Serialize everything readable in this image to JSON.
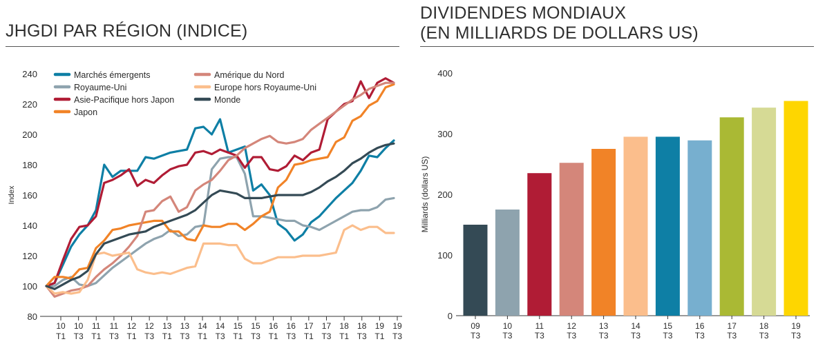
{
  "colors": {
    "marches_emergents": "#0e7fa5",
    "royaume_uni": "#8ea3ae",
    "asie_pacifique": "#b01c35",
    "japon": "#f18327",
    "amerique_du_nord": "#d4867a",
    "europe": "#fbbe8c",
    "monde": "#344a55"
  },
  "charts": {
    "left_title": "JHGDI PAR RÉGION (INDICE)",
    "right_title_line1": "DIVIDENDES MONDIAUX",
    "right_title_line2": "(EN MILLIARDS DE DOLLARS US)"
  },
  "chart_data": [
    {
      "type": "line",
      "title": "JHGDI PAR RÉGION (INDICE)",
      "ylabel": "Index",
      "ylim": [
        80,
        240
      ],
      "yticks": [
        80,
        100,
        120,
        140,
        160,
        180,
        200,
        220,
        240
      ],
      "x_tick_labels": [
        [
          "10",
          "T1"
        ],
        [
          "10",
          "T3"
        ],
        [
          "11",
          "T1"
        ],
        [
          "11",
          "T3"
        ],
        [
          "12",
          "T1"
        ],
        [
          "12",
          "T3"
        ],
        [
          "13",
          "T1"
        ],
        [
          "13",
          "T3"
        ],
        [
          "14",
          "T1"
        ],
        [
          "14",
          "T3"
        ],
        [
          "15",
          "T1"
        ],
        [
          "15",
          "T3"
        ],
        [
          "16",
          "T1"
        ],
        [
          "16",
          "T3"
        ],
        [
          "17",
          "T1"
        ],
        [
          "17",
          "T3"
        ],
        [
          "18",
          "T1"
        ],
        [
          "18",
          "T3"
        ],
        [
          "19",
          "T1"
        ],
        [
          "19",
          "T3"
        ]
      ],
      "legend_position": "top",
      "series": [
        {
          "name": "Marchés émergents",
          "color_key": "marches_emergents",
          "values": [
            100,
            102,
            114,
            126,
            134,
            140,
            150,
            180,
            172,
            176,
            176,
            176,
            185,
            184,
            186,
            188,
            189,
            190,
            204,
            205,
            200,
            210,
            188,
            190,
            192,
            163,
            167,
            160,
            141,
            137,
            130,
            134,
            142,
            146,
            152,
            158,
            163,
            168,
            176,
            186,
            185,
            191,
            196
          ]
        },
        {
          "name": "Royaume-Uni",
          "color_key": "royaume_uni",
          "values": [
            100,
            100,
            104,
            106,
            101,
            100,
            102,
            107,
            112,
            116,
            120,
            124,
            128,
            131,
            133,
            137,
            133,
            134,
            139,
            140,
            177,
            184,
            185,
            185,
            174,
            146,
            146,
            145,
            144,
            143,
            143,
            140,
            139,
            137,
            140,
            143,
            146,
            149,
            150,
            150,
            152,
            157,
            158
          ]
        },
        {
          "name": "Asie-Pacifique hors Japon",
          "color_key": "asie_pacifique",
          "values": [
            100,
            102,
            117,
            131,
            139,
            140,
            146,
            168,
            170,
            173,
            177,
            166,
            170,
            168,
            173,
            177,
            179,
            180,
            188,
            189,
            187,
            190,
            188,
            186,
            178,
            185,
            185,
            177,
            176,
            179,
            186,
            183,
            188,
            190,
            210,
            215,
            220,
            222,
            235,
            224,
            234,
            237,
            234
          ]
        },
        {
          "name": "Japon",
          "color_key": "japon",
          "values": [
            100,
            106,
            106,
            105,
            111,
            112,
            125,
            130,
            137,
            138,
            140,
            141,
            142,
            143,
            143,
            136,
            136,
            131,
            130,
            140,
            139,
            139,
            141,
            141,
            137,
            141,
            146,
            149,
            165,
            170,
            180,
            181,
            183,
            184,
            185,
            195,
            198,
            209,
            212,
            219,
            222,
            231,
            233
          ]
        },
        {
          "name": "Amérique du Nord",
          "color_key": "amerique_du_nord",
          "values": [
            100,
            93,
            95,
            97,
            98,
            100,
            106,
            111,
            115,
            120,
            126,
            133,
            149,
            150,
            156,
            159,
            149,
            152,
            163,
            167,
            170,
            176,
            183,
            186,
            191,
            194,
            197,
            199,
            195,
            194,
            195,
            197,
            203,
            207,
            211,
            215,
            219,
            223,
            226,
            230,
            232,
            234,
            234
          ]
        },
        {
          "name": "Europe hors Royaume-Uni",
          "color_key": "europe",
          "values": [
            100,
            95,
            96,
            95,
            96,
            104,
            121,
            122,
            120,
            121,
            122,
            111,
            109,
            108,
            109,
            108,
            110,
            112,
            113,
            128,
            128,
            128,
            127,
            127,
            118,
            115,
            115,
            117,
            119,
            119,
            119,
            120,
            120,
            120,
            121,
            122,
            137,
            140,
            137,
            139,
            139,
            135,
            135
          ]
        },
        {
          "name": "Monde",
          "color_key": "monde",
          "values": [
            100,
            98,
            101,
            104,
            106,
            110,
            121,
            128,
            130,
            132,
            134,
            135,
            136,
            139,
            141,
            143,
            145,
            147,
            150,
            155,
            160,
            163,
            162,
            161,
            158,
            158,
            158,
            159,
            160,
            160,
            160,
            160,
            162,
            165,
            169,
            172,
            176,
            181,
            184,
            188,
            191,
            193,
            194
          ]
        }
      ]
    },
    {
      "type": "bar",
      "title": "DIVIDENDES MONDIAUX (EN MILLIARDS DE DOLLARS US)",
      "ylabel": "Milliards (dollars US)",
      "ylim": [
        0,
        400
      ],
      "yticks": [
        0,
        100,
        200,
        300,
        400
      ],
      "categories": [
        [
          "09",
          "T3"
        ],
        [
          "10",
          "T3"
        ],
        [
          "11",
          "T3"
        ],
        [
          "12",
          "T3"
        ],
        [
          "13",
          "T3"
        ],
        [
          "14",
          "T3"
        ],
        [
          "15",
          "T3"
        ],
        [
          "16",
          "T3"
        ],
        [
          "17",
          "T3"
        ],
        [
          "18",
          "T3"
        ],
        [
          "19",
          "T3"
        ]
      ],
      "values": [
        150,
        175,
        235,
        252,
        275,
        295,
        295,
        289,
        327,
        343,
        354
      ],
      "bar_colors": [
        "#344a55",
        "#8ea3ae",
        "#b01c35",
        "#d4867a",
        "#f18327",
        "#fbbe8c",
        "#0e7fa5",
        "#77afcf",
        "#aab934",
        "#d6da95",
        "#fed600"
      ]
    }
  ]
}
